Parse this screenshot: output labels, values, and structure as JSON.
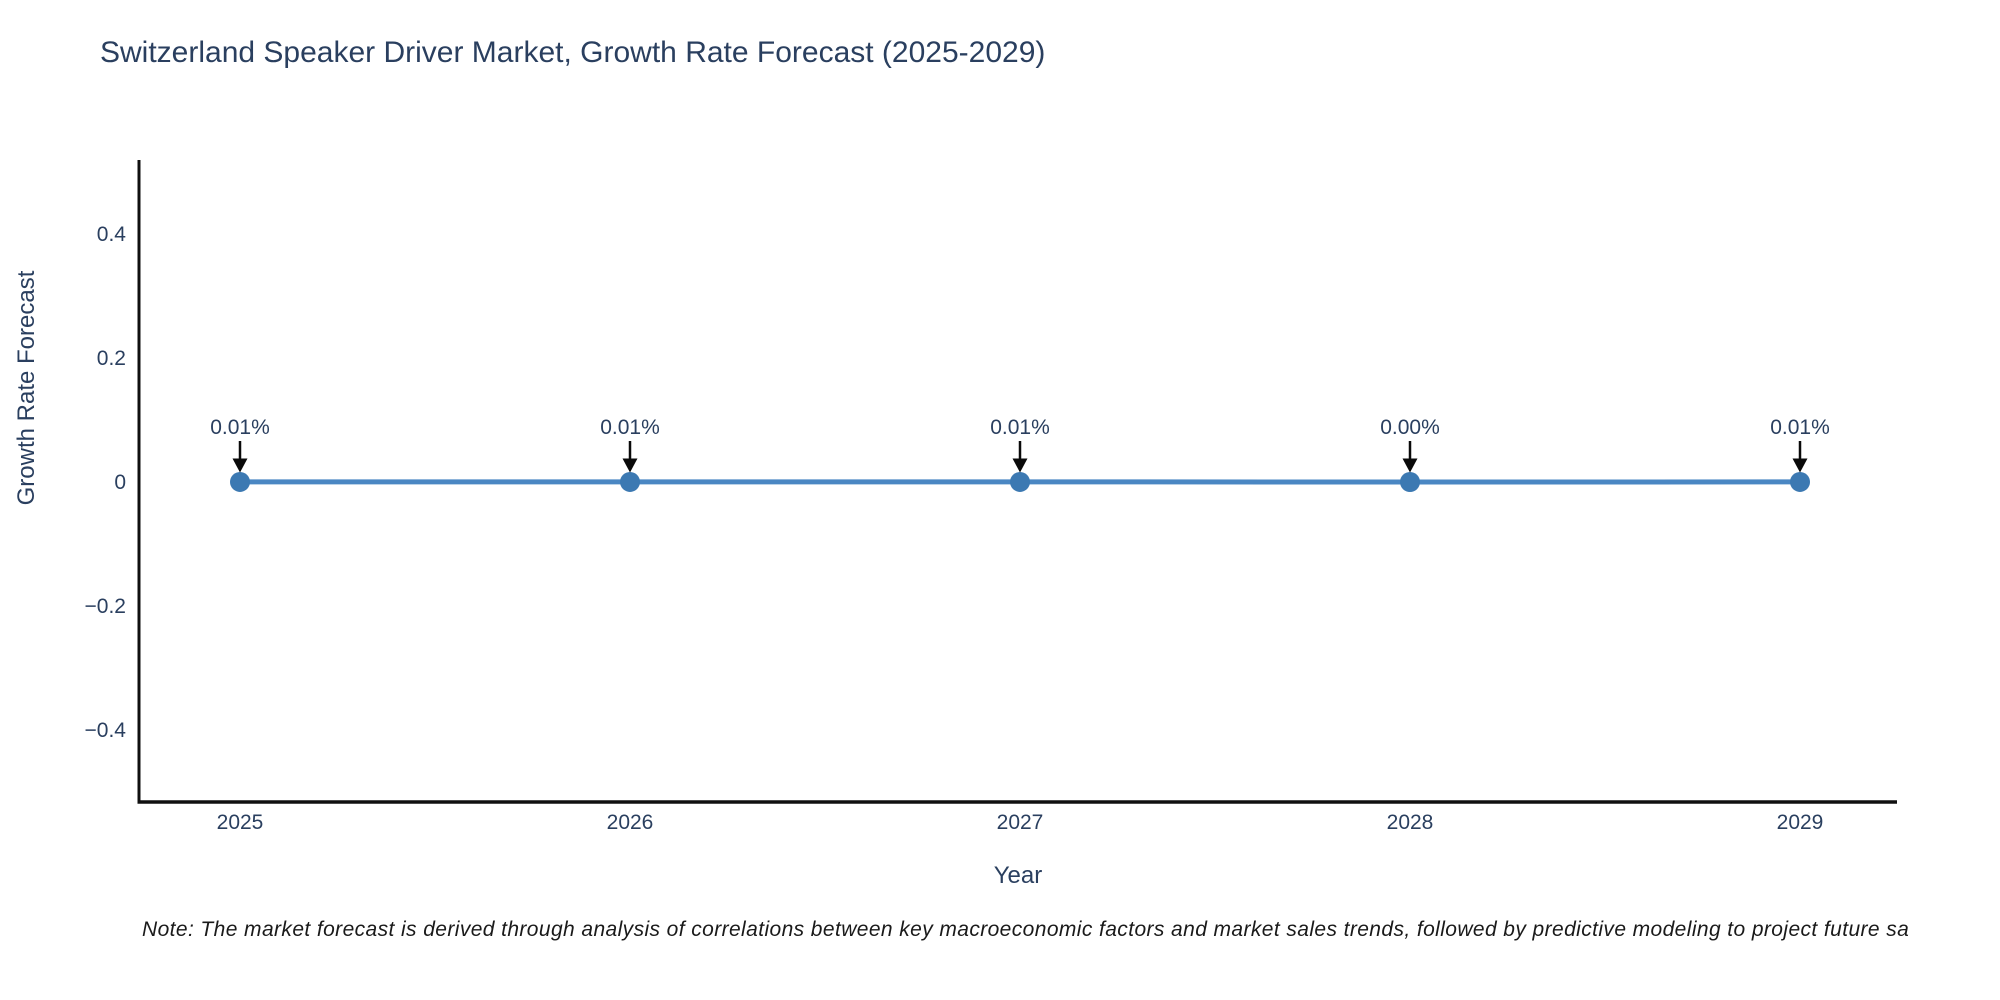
{
  "note": "Note: The market forecast is derived through analysis of correlations between key macroeconomic factors and market sales trends, followed by predictive modeling to project future sa",
  "colors": {
    "title_text": "#2a3f5f",
    "tick_text": "#2a3f5f",
    "axis_line": "#101010",
    "trend_line": "#4a87c3",
    "marker_fill": "#3c79b2",
    "annotation_text": "#2a3f5f",
    "arrow": "#0a0a0a",
    "note_text": "#1a1a1a",
    "background": "#ffffff"
  },
  "chart_data": {
    "type": "line",
    "title": "Switzerland Speaker Driver Market, Growth Rate Forecast (2025-2029)",
    "xlabel": "Year",
    "ylabel": "Growth Rate Forecast",
    "categories": [
      "2025",
      "2026",
      "2027",
      "2028",
      "2029"
    ],
    "values_percent": [
      0.01,
      0.01,
      0.01,
      0.0,
      0.01
    ],
    "point_labels": [
      "0.01%",
      "0.01%",
      "0.01%",
      "0.00%",
      "0.01%"
    ],
    "y_ticks": [
      0.4,
      0.2,
      0,
      -0.2,
      -0.4
    ],
    "y_tick_labels": [
      "0.4",
      "0.2",
      "0",
      "−0.2",
      "−0.4"
    ],
    "ylim": [
      -0.52,
      0.52
    ],
    "grid": false,
    "legend": false,
    "annotations_arrows": true
  }
}
